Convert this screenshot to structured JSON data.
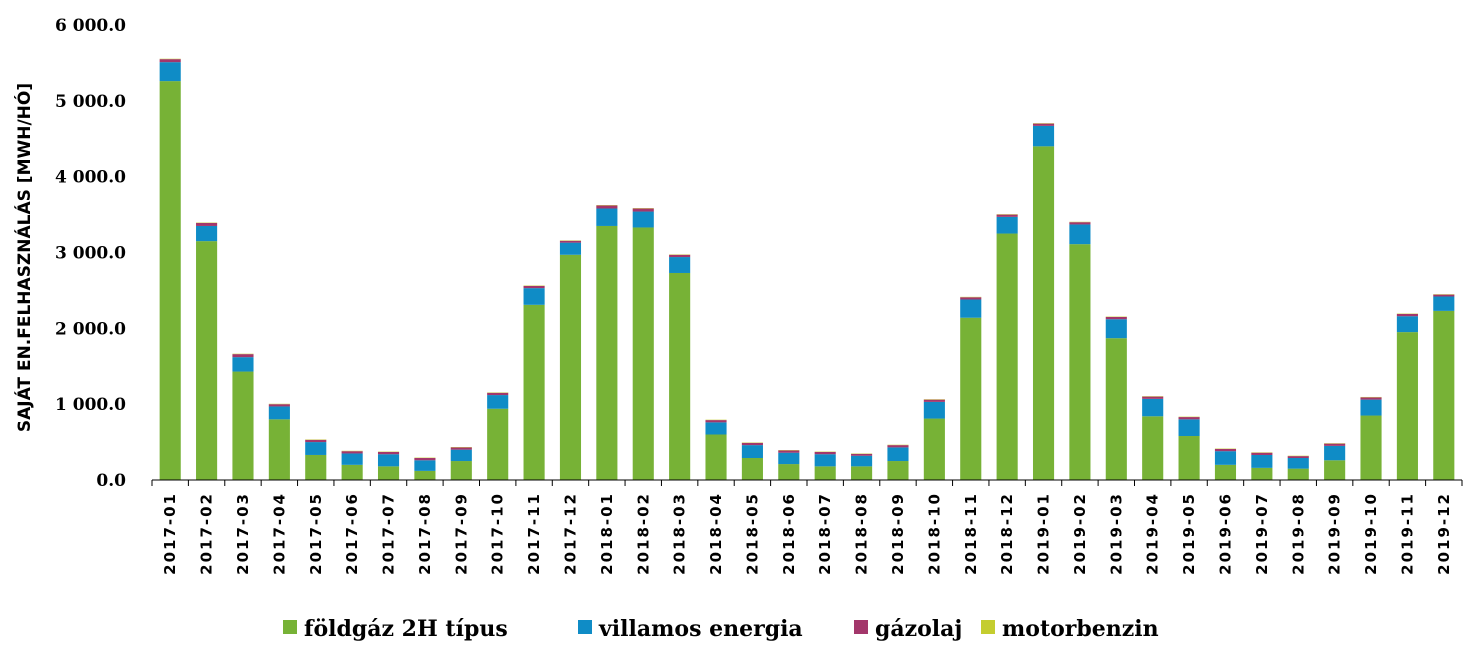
{
  "chart_data": {
    "type": "bar",
    "stacked": true,
    "ylabel": "SAJÁT EN.FELHASZNÁLÁS [MWH/HÓ]",
    "xlabel": "",
    "title": "",
    "ylim": [
      0,
      6000
    ],
    "yticks": [
      0,
      1000,
      2000,
      3000,
      4000,
      5000,
      6000
    ],
    "ytick_labels": [
      "0.0",
      "1 000.0",
      "2 000.0",
      "3 000.0",
      "4 000.0",
      "5 000.0",
      "6 000.0"
    ],
    "grid": false,
    "legend_position": "bottom",
    "categories": [
      "2017-01",
      "2017-02",
      "2017-03",
      "2017-04",
      "2017-05",
      "2017-06",
      "2017-07",
      "2017-08",
      "2017-09",
      "2017-10",
      "2017-11",
      "2017-12",
      "2018-01",
      "2018-02",
      "2018-03",
      "2018-04",
      "2018-05",
      "2018-06",
      "2018-07",
      "2018-08",
      "2018-09",
      "2018-10",
      "2018-11",
      "2018-12",
      "2019-01",
      "2019-02",
      "2019-03",
      "2019-04",
      "2019-05",
      "2019-06",
      "2019-07",
      "2019-08",
      "2019-09",
      "2019-10",
      "2019-11",
      "2019-12"
    ],
    "series": [
      {
        "name": "földgáz 2H típus",
        "color": "#77b236",
        "values": [
          5260,
          3150,
          1430,
          800,
          330,
          200,
          180,
          120,
          250,
          940,
          2310,
          2970,
          3350,
          3330,
          2730,
          600,
          290,
          210,
          180,
          180,
          250,
          810,
          2140,
          3250,
          4400,
          3110,
          1870,
          840,
          580,
          200,
          160,
          150,
          260,
          850,
          1950,
          2230
        ]
      },
      {
        "name": "villamos energia",
        "color": "#0f8cc6",
        "values": [
          250,
          200,
          190,
          170,
          170,
          150,
          160,
          140,
          150,
          180,
          220,
          160,
          230,
          210,
          210,
          160,
          170,
          150,
          160,
          140,
          180,
          220,
          240,
          220,
          270,
          260,
          250,
          230,
          220,
          180,
          170,
          140,
          190,
          210,
          210,
          190
        ]
      },
      {
        "name": "gázolaj",
        "color": "#a3376b",
        "values": [
          40,
          40,
          40,
          30,
          30,
          30,
          30,
          30,
          30,
          30,
          30,
          25,
          40,
          40,
          30,
          30,
          30,
          30,
          30,
          25,
          30,
          30,
          30,
          30,
          30,
          30,
          30,
          30,
          30,
          30,
          30,
          25,
          30,
          30,
          30,
          25
        ]
      },
      {
        "name": "motorbenzin",
        "color": "#c4cd2f",
        "values": [
          5,
          5,
          5,
          5,
          5,
          5,
          5,
          5,
          5,
          5,
          5,
          5,
          5,
          5,
          5,
          5,
          5,
          5,
          5,
          5,
          5,
          5,
          5,
          5,
          5,
          5,
          5,
          5,
          5,
          5,
          5,
          5,
          5,
          5,
          5,
          5
        ]
      }
    ]
  }
}
